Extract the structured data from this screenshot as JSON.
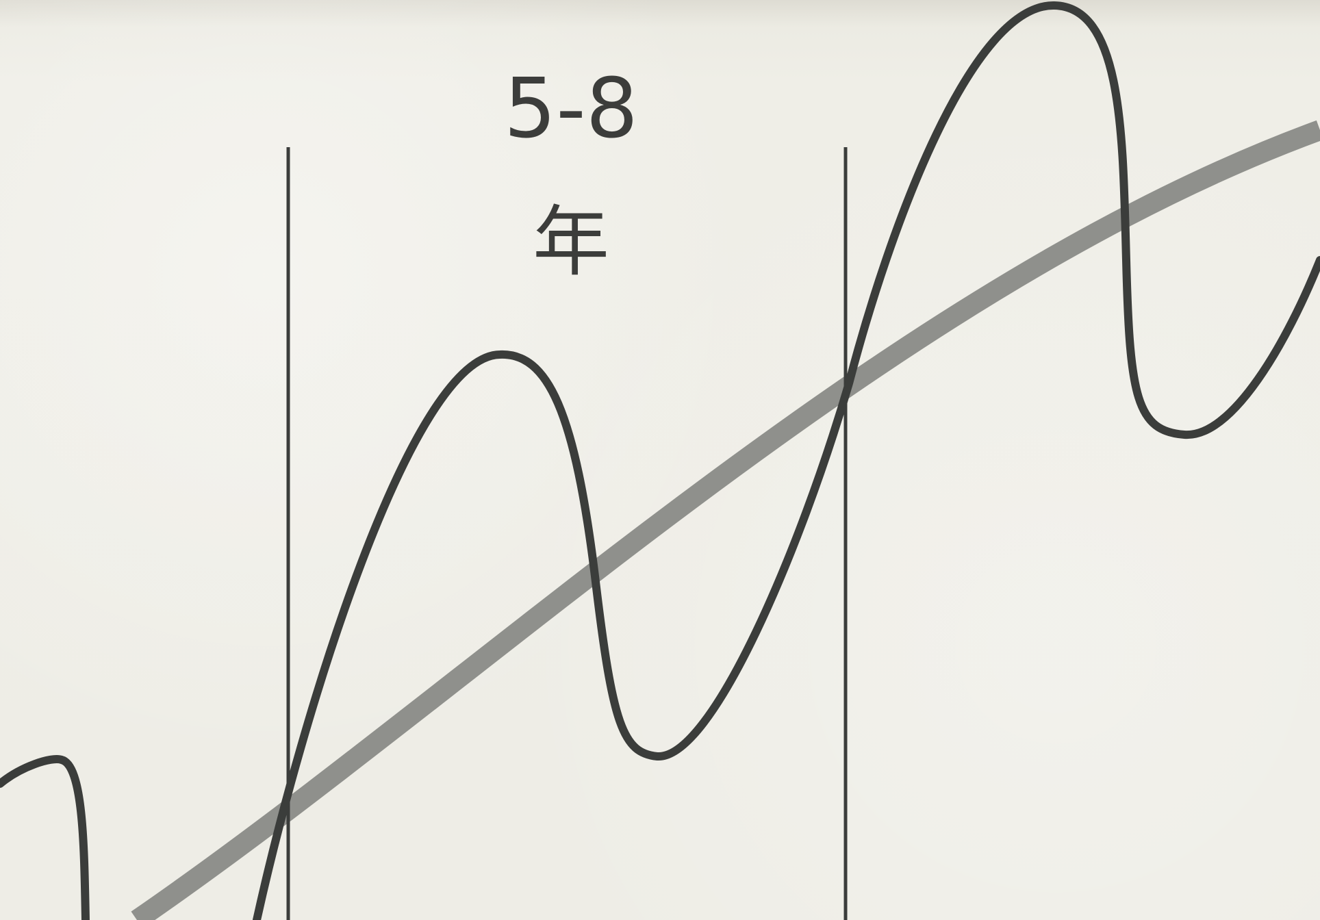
{
  "period": {
    "range_label": "5-8",
    "unit_label": "年"
  },
  "colors": {
    "paper": "#efede4",
    "cycle_curve": "#3b3d3b",
    "trend_curve": "#8f908c",
    "boundary_line": "#3b3d3b",
    "label": "#3c3d3b"
  }
}
